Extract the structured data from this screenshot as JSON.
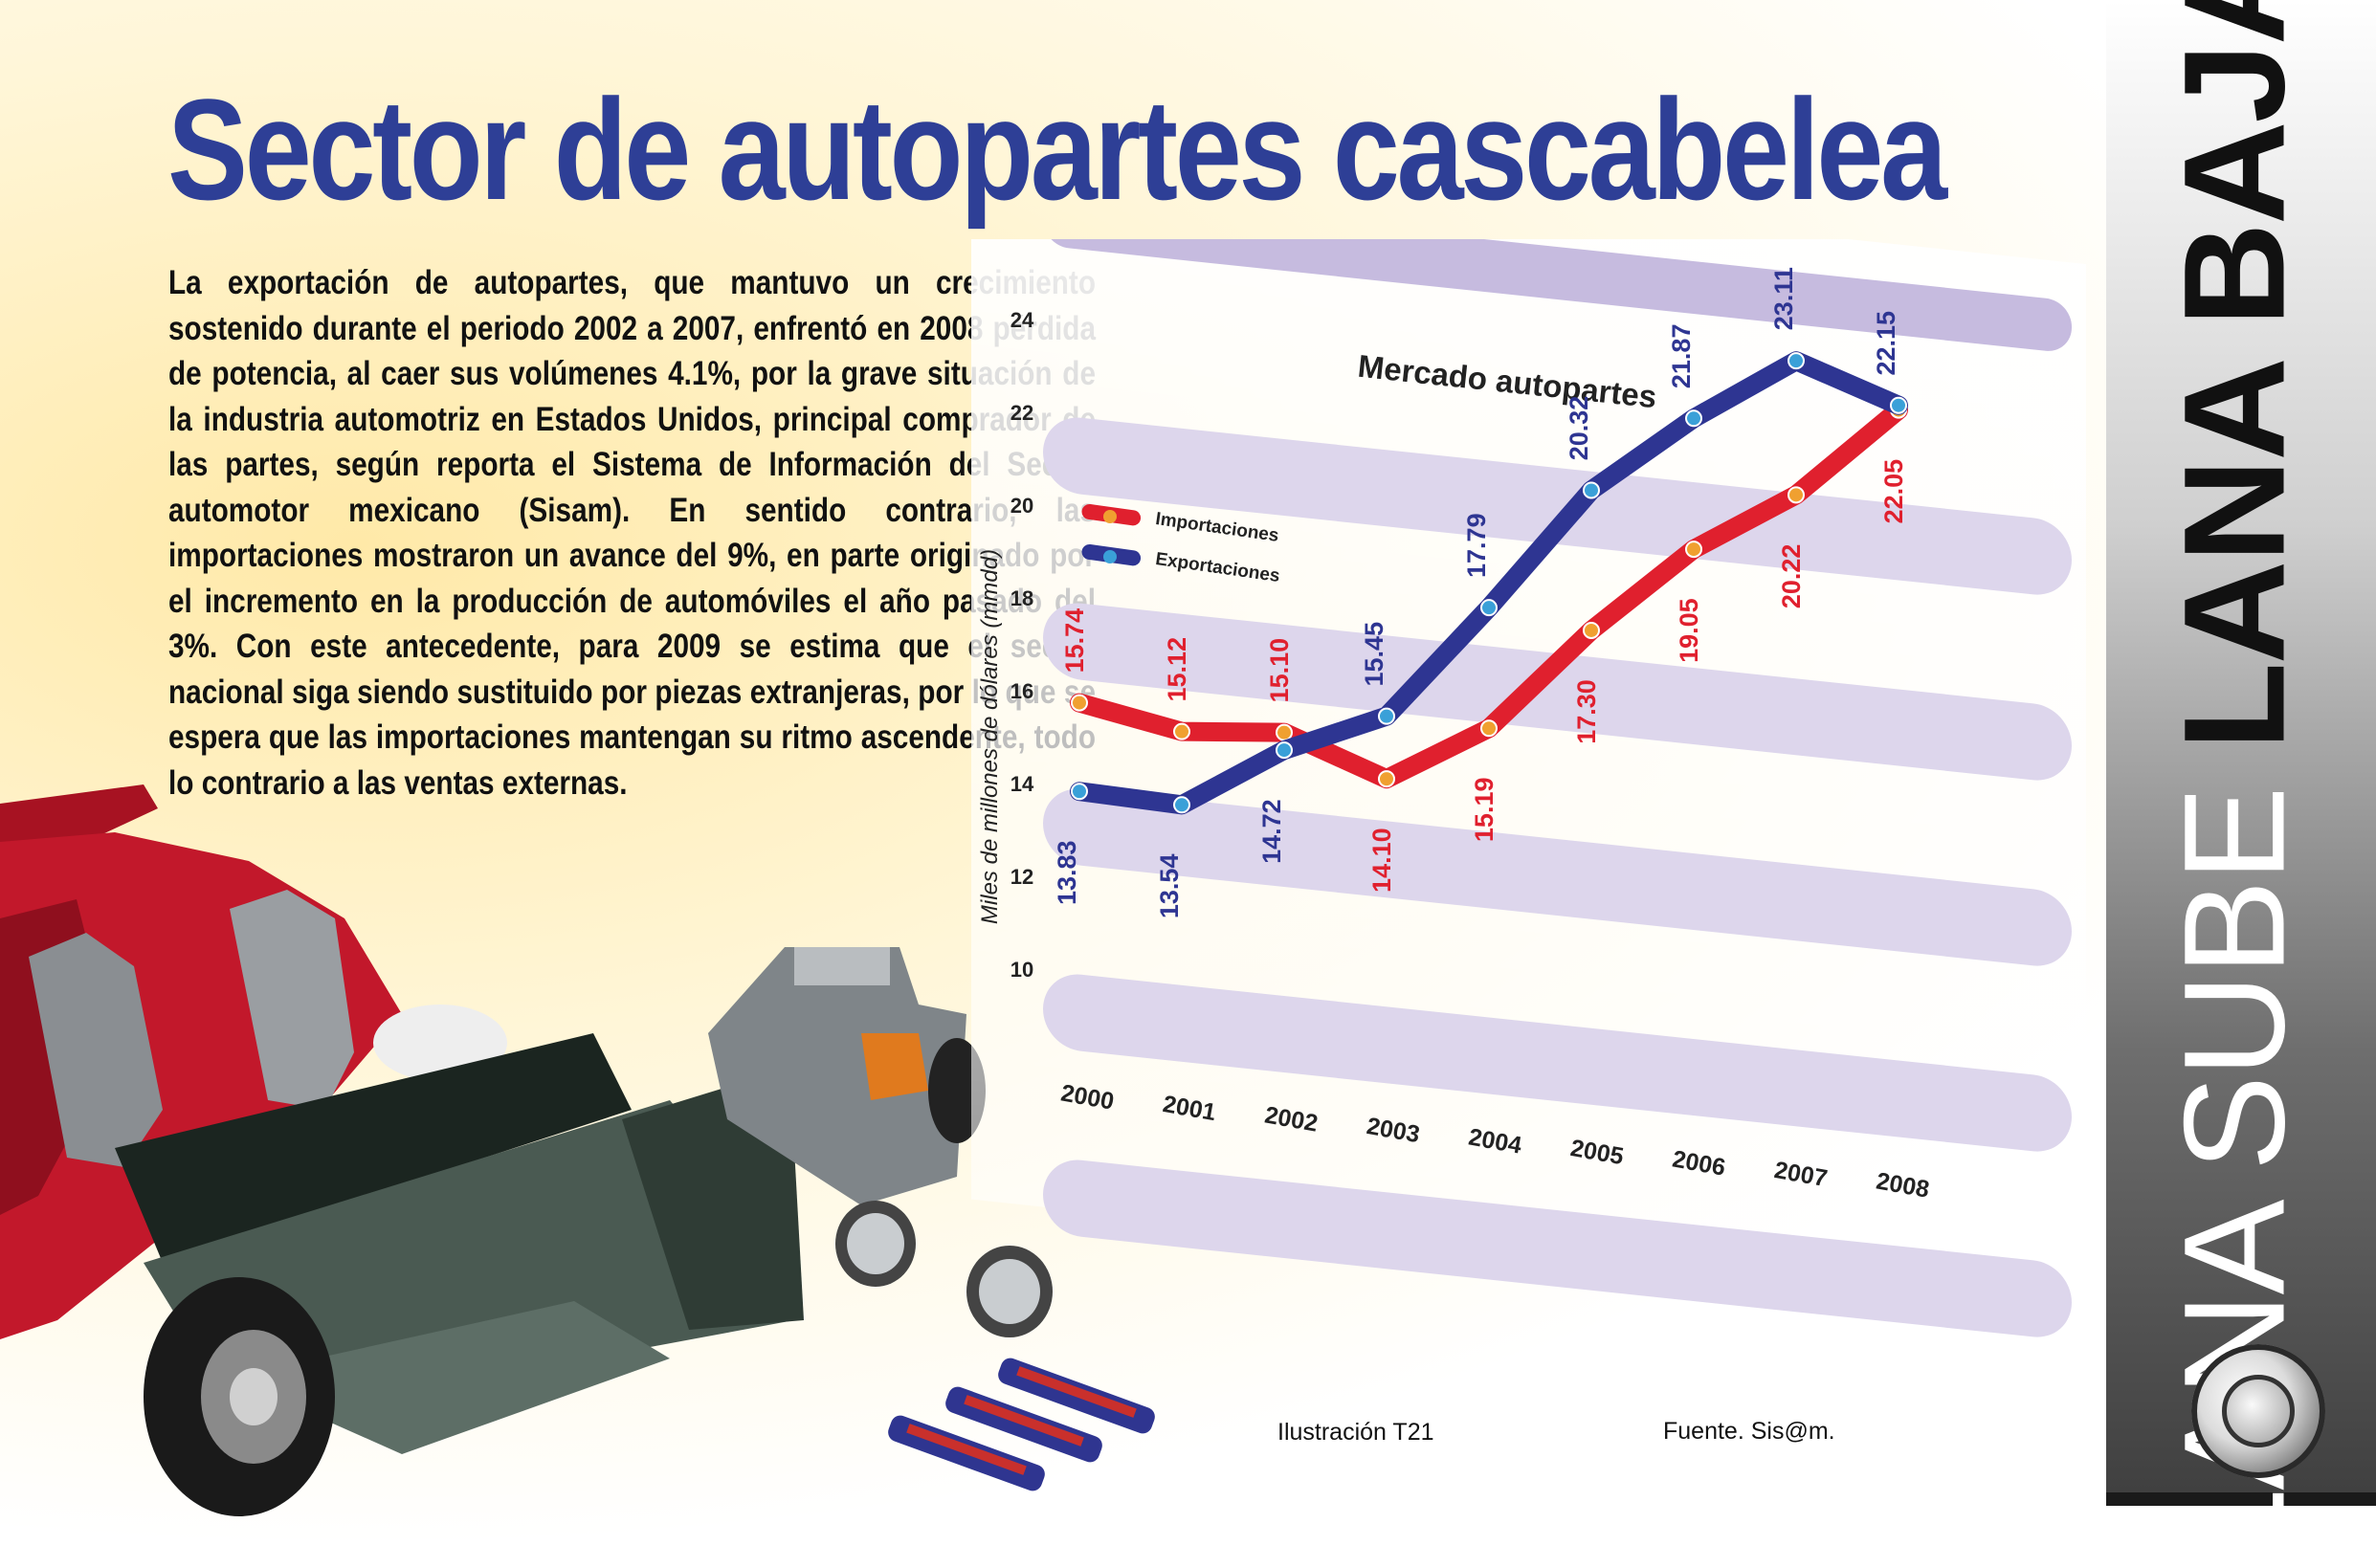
{
  "headline": "Sector de autopartes cascabelea",
  "body": "La exportación de autopartes, que mantuvo un crecimiento sostenido durante el periodo 2002 a 2007, enfrentó en 2008 pérdida de potencia, al caer sus volúmenes 4.1%, por la grave situación de la industria automotriz en Estados Unidos, principal comprador de las partes, según reporta el Sistema de Información del Sector automotor mexicano (Sisam). En sentido contrario, las importaciones mostraron un avance del 9%, en parte originado por el incremento en la producción de automóviles el año pasado del 3%. Con este antecedente, para 2009 se estima que el sector nacional siga siendo sustituido por piezas extranjeras, por lo que se espera que las importaciones mantengan su ritmo ascendente, todo lo contrario a las ventas externas.",
  "side": {
    "light": "LANA SUBE ",
    "bold": "LANA BAJA"
  },
  "credits": {
    "illustration": "Ilustración T21",
    "source": "Fuente. Sis@m."
  },
  "colors": {
    "title": "#2e3f96",
    "importaciones": "#e0202e",
    "exportaciones": "#2e3592",
    "band": "#ddd6ec",
    "header": "#c6bbdf"
  },
  "chart_data": {
    "type": "line",
    "title": "Mercado autopartes",
    "ylabel": "Miles de millones de dólares (mmdd)",
    "xlabel": "",
    "categories": [
      "2000",
      "2001",
      "2002",
      "2003",
      "2004",
      "2005",
      "2006",
      "2007",
      "2008"
    ],
    "ylim": [
      10,
      24
    ],
    "yticks": [
      "24",
      "22",
      "20",
      "18",
      "16",
      "14",
      "12",
      "10"
    ],
    "legend_position": "top-left",
    "series": [
      {
        "name": "Importaciones",
        "color": "#e0202e",
        "values": [
          15.74,
          15.12,
          15.1,
          14.1,
          15.19,
          17.3,
          19.05,
          20.22,
          22.05
        ],
        "labels": [
          "15.74",
          "15.12",
          "15.10",
          "14.10",
          "15.19",
          "17.30",
          "19.05",
          "20.22",
          "22.05"
        ]
      },
      {
        "name": "Exportaciones",
        "color": "#2e3592",
        "values": [
          13.83,
          13.54,
          14.72,
          15.45,
          17.79,
          20.32,
          21.87,
          23.11,
          22.15
        ],
        "labels": [
          "13.83",
          "13.54",
          "14.72",
          "15.45",
          "17.79",
          "20.32",
          "21.87",
          "23.11",
          "22.15"
        ]
      }
    ]
  }
}
